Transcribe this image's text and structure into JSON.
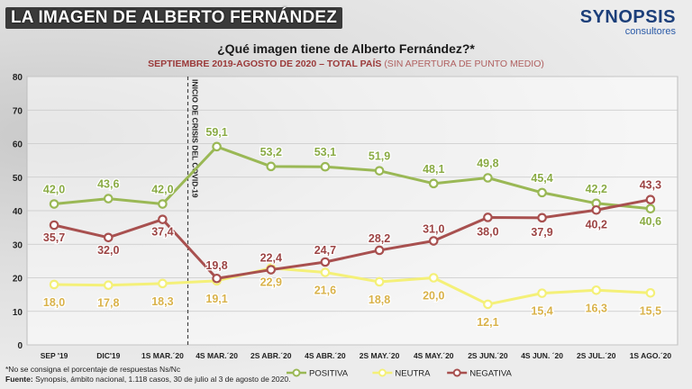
{
  "header": {
    "title": "LA IMAGEN DE ALBERTO FERNÁNDEZ",
    "brand_name": "SYNOPSIS",
    "brand_sub": "consultores"
  },
  "chart_data": {
    "type": "line",
    "title": "¿Qué imagen tiene de Alberto Fernández?*",
    "subtitle": "SEPTIEMBRE 2019-AGOSTO DE 2020 – TOTAL PAÍS",
    "subtitle_note": "(SIN APERTURA DE PUNTO MEDIO)",
    "categories": [
      "SEP '19",
      "DIC'19",
      "1S MAR.´20",
      "4S MAR.´20",
      "2S ABR.´20",
      "4S ABR.´20",
      "2S MAY.´20",
      "4S MAY.´20",
      "2S JUN.´20",
      "4S JUN. ´20",
      "2S JUL.´20",
      "1S AGO.´20"
    ],
    "ylim": [
      0,
      80
    ],
    "yticks": [
      0,
      10,
      20,
      30,
      40,
      50,
      60,
      70,
      80
    ],
    "grid": true,
    "legend_position": "bottom",
    "annotation": {
      "text": "INICIO DE CRISIS DEL COVID-19",
      "between": [
        "1S MAR.´20",
        "4S MAR.´20"
      ]
    },
    "series": [
      {
        "name": "POSITIVA",
        "color": "#9ab855",
        "label_color": "#8aab45",
        "values": [
          42.0,
          43.6,
          42.0,
          59.1,
          53.2,
          53.1,
          51.9,
          48.1,
          49.8,
          45.4,
          42.2,
          40.6
        ],
        "labels": [
          "42,0",
          "43,6",
          "42,0",
          "59,1",
          "53,2",
          "53,1",
          "51,9",
          "48,1",
          "49,8",
          "45,4",
          "42,2",
          "40,6"
        ]
      },
      {
        "name": "NEUTRA",
        "color": "#f4f078",
        "label_color": "#d9b24a",
        "values": [
          18.0,
          17.8,
          18.3,
          19.1,
          22.9,
          21.6,
          18.8,
          20.0,
          12.1,
          15.4,
          16.3,
          15.5
        ],
        "labels": [
          "18,0",
          "17,8",
          "18,3",
          "19,1",
          "22,9",
          "21,6",
          "18,8",
          "20,0",
          "12,1",
          "15,4",
          "16,3",
          "15,5"
        ]
      },
      {
        "name": "NEGATIVA",
        "color": "#a8504f",
        "label_color": "#9c4444",
        "values": [
          35.7,
          32.0,
          37.4,
          19.8,
          22.4,
          24.7,
          28.2,
          31.0,
          38.0,
          37.9,
          40.2,
          43.3
        ],
        "labels": [
          "35,7",
          "32,0",
          "37,4",
          "19,8",
          "22,4",
          "24,7",
          "28,2",
          "31,0",
          "38,0",
          "37,9",
          "40,2",
          "43,3"
        ]
      }
    ]
  },
  "footnotes": {
    "line1": "*No se consigna el porcentaje de respuestas Ns/Nc",
    "line2_label": "Fuente:",
    "line2_text": "Synopsis, ámbito nacional, 1.118 casos, 30 de julio al 3 de agosto de 2020."
  }
}
